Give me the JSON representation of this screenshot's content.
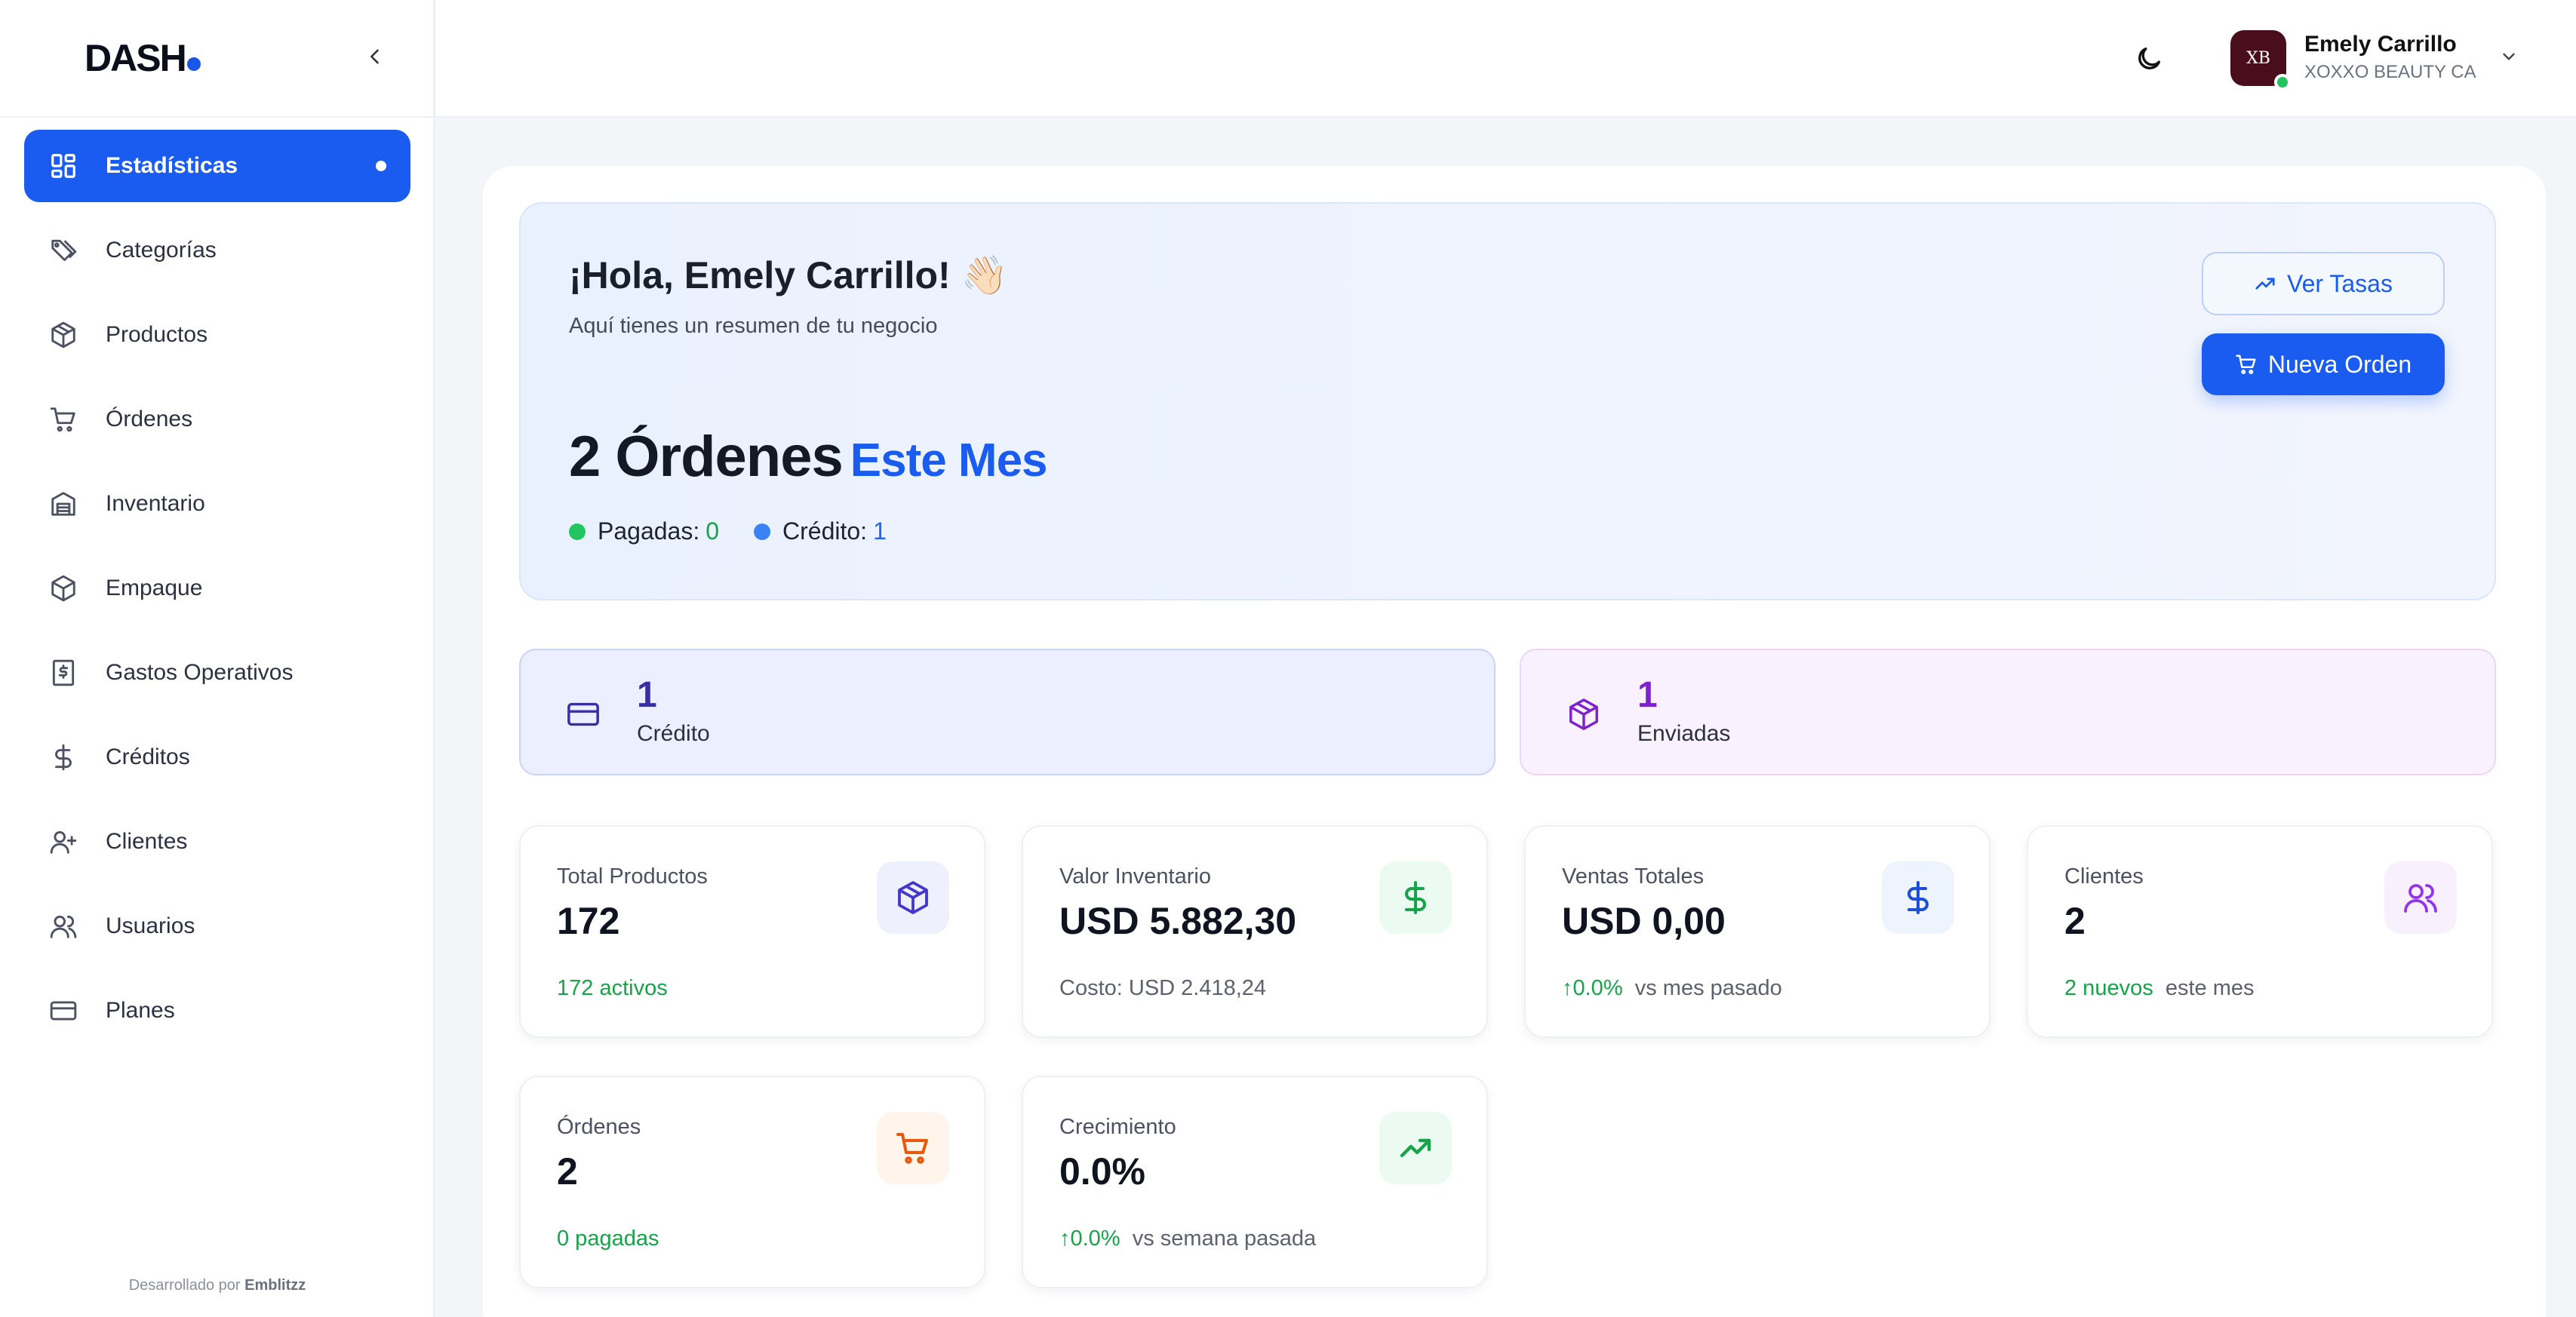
{
  "brand": {
    "logo_text": "DASH",
    "accent": "#1a5cf0"
  },
  "sidebar": {
    "items": [
      {
        "label": "Estadísticas",
        "icon": "dashboard-grid-icon",
        "active": true
      },
      {
        "label": "Categorías",
        "icon": "tags-icon"
      },
      {
        "label": "Productos",
        "icon": "box-icon"
      },
      {
        "label": "Órdenes",
        "icon": "cart-icon"
      },
      {
        "label": "Inventario",
        "icon": "warehouse-icon"
      },
      {
        "label": "Empaque",
        "icon": "package-icon"
      },
      {
        "label": "Gastos Operativos",
        "icon": "receipt-dollar-icon"
      },
      {
        "label": "Créditos",
        "icon": "dollar-icon"
      },
      {
        "label": "Clientes",
        "icon": "user-plus-icon"
      },
      {
        "label": "Usuarios",
        "icon": "users-icon"
      },
      {
        "label": "Planes",
        "icon": "credit-card-icon"
      }
    ],
    "footer_prefix": "Desarrollado por",
    "footer_brand": "Emblitzz"
  },
  "header": {
    "user_name": "Emely Carrillo",
    "company": "XOXXO BEAUTY CA",
    "avatar_text": "XB"
  },
  "hero": {
    "greeting": "¡Hola, Emely Carrillo! 👋🏻",
    "subtitle": "Aquí tienes un resumen de tu negocio",
    "orders_count": "2 Órdenes",
    "period": "Este Mes",
    "paid_label": "Pagadas:",
    "paid_value": "0",
    "credit_label": "Crédito:",
    "credit_value": "1",
    "btn_rates": "Ver Tasas",
    "btn_new_order": "Nueva Orden"
  },
  "status_cards": {
    "credit": {
      "value": "1",
      "label": "Crédito"
    },
    "sent": {
      "value": "1",
      "label": "Enviadas"
    }
  },
  "stats": {
    "total_products": {
      "title": "Total Productos",
      "value": "172",
      "footer_green": "172 activos",
      "footer": ""
    },
    "inventory_value": {
      "title": "Valor Inventario",
      "value": "USD 5.882,30",
      "footer_green": "",
      "footer": "Costo: USD 2.418,24"
    },
    "total_sales": {
      "title": "Ventas Totales",
      "value": "USD 0,00",
      "footer_green": "0.0%",
      "footer": "vs mes pasado"
    },
    "clients": {
      "title": "Clientes",
      "value": "2",
      "footer_green": "2 nuevos",
      "footer": "este mes"
    },
    "orders": {
      "title": "Órdenes",
      "value": "2",
      "footer_green": "0 pagadas",
      "footer": ""
    },
    "growth": {
      "title": "Crecimiento",
      "value": "0.0%",
      "footer_green": "0.0%",
      "footer": "vs semana pasada"
    }
  },
  "colors": {
    "success": "#16a34a",
    "credit_card_bg": "#ebefff",
    "sent_card_bg": "#faf1fe"
  }
}
